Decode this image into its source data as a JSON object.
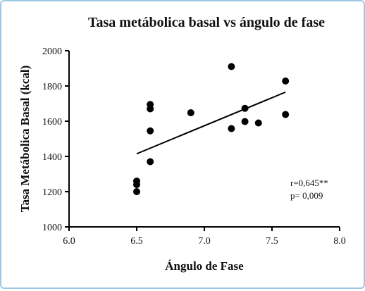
{
  "chart_data": {
    "type": "scatter",
    "title": "Tasa metábolica basal vs ángulo de fase",
    "xlabel": "Ángulo de Fase",
    "ylabel": "Tasa Metábolica Basal (kcal)",
    "xlim": [
      6.0,
      8.0
    ],
    "ylim": [
      1000,
      2000
    ],
    "x_ticks": [
      "6.0",
      "6.5",
      "7.0",
      "7.5",
      "8.0"
    ],
    "y_ticks": [
      "1000",
      "1200",
      "1400",
      "1600",
      "1800",
      "2000"
    ],
    "x_tick_values": [
      6.0,
      6.5,
      7.0,
      7.5,
      8.0
    ],
    "y_tick_values": [
      1000,
      1200,
      1400,
      1600,
      1800,
      2000
    ],
    "points": [
      {
        "x": 6.5,
        "y": 1260
      },
      {
        "x": 6.5,
        "y": 1240
      },
      {
        "x": 6.5,
        "y": 1200
      },
      {
        "x": 6.6,
        "y": 1695
      },
      {
        "x": 6.6,
        "y": 1670
      },
      {
        "x": 6.6,
        "y": 1545
      },
      {
        "x": 6.6,
        "y": 1370
      },
      {
        "x": 6.9,
        "y": 1648
      },
      {
        "x": 7.2,
        "y": 1910
      },
      {
        "x": 7.2,
        "y": 1558
      },
      {
        "x": 7.3,
        "y": 1673
      },
      {
        "x": 7.3,
        "y": 1598
      },
      {
        "x": 7.4,
        "y": 1590
      },
      {
        "x": 7.6,
        "y": 1828
      },
      {
        "x": 7.6,
        "y": 1638
      }
    ],
    "trendline": {
      "x": [
        6.5,
        7.6
      ],
      "y": [
        1415,
        1765
      ]
    },
    "grid": false,
    "annotations": [
      "r=0,645**",
      "p= 0,009"
    ]
  }
}
